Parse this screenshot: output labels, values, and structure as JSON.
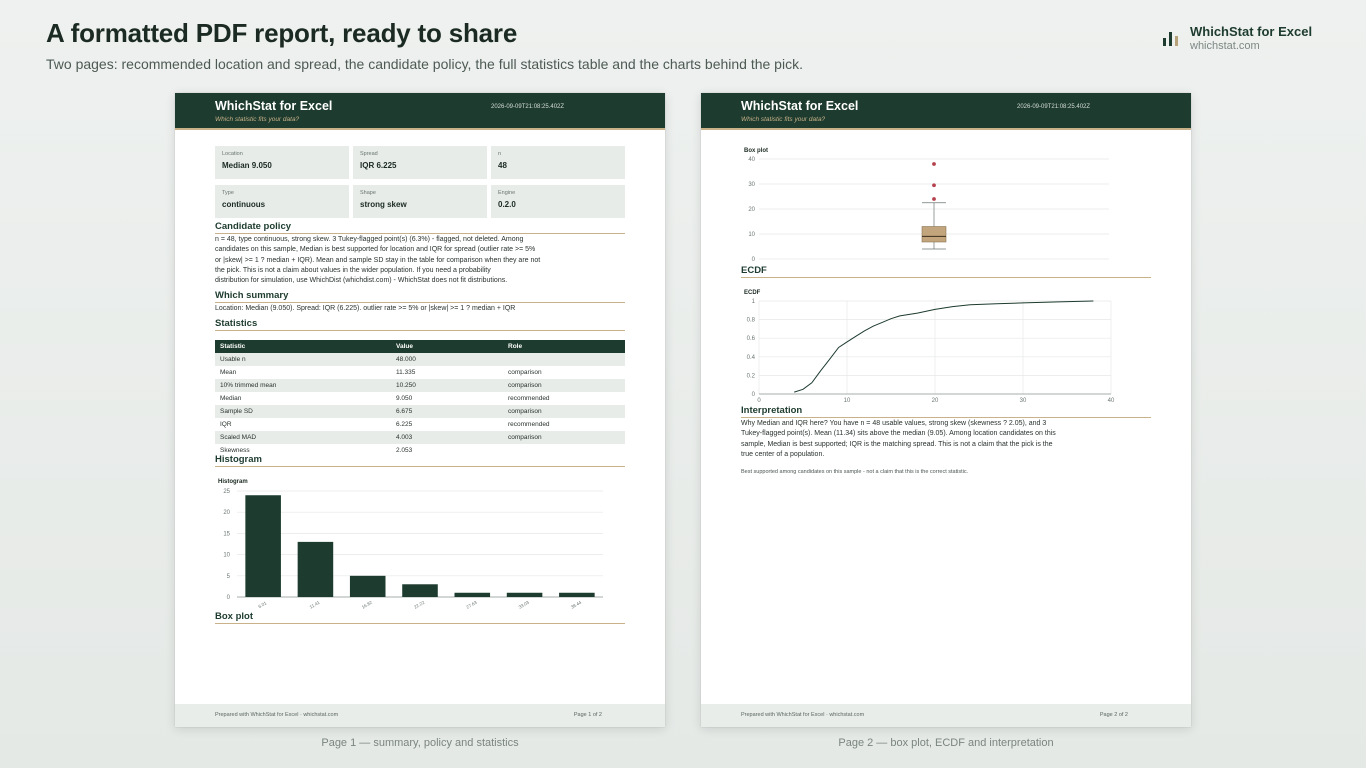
{
  "hero": {
    "title": "A formatted PDF report, ready to share",
    "subtitle": "Two pages: recommended location and spread, the candidate policy, the full statistics table and the charts behind the pick."
  },
  "brand": {
    "name": "WhichStat for Excel",
    "url": "whichstat.com",
    "icon": "bar-chart-icon"
  },
  "report": {
    "title": "WhichStat for Excel",
    "tagline": "Which statistic fits your data?",
    "timestamp": "2026-09-09T21:08:25.402Z",
    "footer_left": "Prepared with WhichStat for Excel · whichstat.com"
  },
  "page1": {
    "page_label": "Page 1 of 2",
    "caption": "Page 1 — summary, policy and statistics",
    "cards": [
      {
        "key": "Location",
        "value": "Median  9.050"
      },
      {
        "key": "Spread",
        "value": "IQR  6.225"
      },
      {
        "key": "n",
        "value": "48"
      },
      {
        "key": "Type",
        "value": "continuous"
      },
      {
        "key": "Shape",
        "value": "strong skew"
      },
      {
        "key": "Engine",
        "value": "0.2.0"
      }
    ],
    "candidate_policy": {
      "heading": "Candidate policy",
      "lines": [
        "n = 48, type continuous, strong skew. 3 Tukey-flagged point(s) (6.3%) - flagged, not deleted. Among",
        "candidates on this sample, Median is best supported for location and IQR for spread (outlier rate >= 5%",
        "or |skew| >= 1 ? median + IQR). Mean and sample SD stay in the table for comparison when they are not",
        "the pick. This is not a claim about values in the wider population. If you need a probability",
        "distribution for simulation, use WhichDist (whichdist.com) - WhichStat does not fit distributions."
      ]
    },
    "which_summary": {
      "heading": "Which summary",
      "text": "Location: Median (9.050). Spread: IQR (6.225). outlier rate >= 5% or |skew| >= 1 ? median + IQR"
    },
    "statistics": {
      "heading": "Statistics",
      "columns": [
        "Statistic",
        "Value",
        "Role"
      ],
      "rows": [
        [
          "Usable n",
          "48.000",
          ""
        ],
        [
          "Mean",
          "11.335",
          "comparison"
        ],
        [
          "10% trimmed mean",
          "10.250",
          "comparison"
        ],
        [
          "Median",
          "9.050",
          "recommended"
        ],
        [
          "Sample SD",
          "6.675",
          "comparison"
        ],
        [
          "IQR",
          "6.225",
          "recommended"
        ],
        [
          "Scaled MAD",
          "4.003",
          "comparison"
        ],
        [
          "Skewness",
          "2.053",
          ""
        ]
      ]
    },
    "histogram_heading": "Histogram",
    "boxplot_heading": "Box plot"
  },
  "page2": {
    "page_label": "Page 2 of 2",
    "caption": "Page 2 — box plot, ECDF and interpretation",
    "ecdf_heading": "ECDF",
    "interpretation": {
      "heading": "Interpretation",
      "lines": [
        "Why Median and IQR here? You have n = 48 usable values, strong skew (skewness ? 2.05), and 3",
        "Tukey-flagged point(s). Mean (11.34) sits above the median (9.05). Among location candidates on this",
        "sample, Median is best supported; IQR is the matching spread. This is not a claim that the pick is the",
        "true center of a population."
      ],
      "note": "Best supported among candidates on this sample - not a claim that this is the correct statistic."
    }
  },
  "chart_data": [
    {
      "type": "bar",
      "title": "Histogram",
      "categories": [
        "6.01",
        "11.41",
        "16.82",
        "22.22",
        "27.63",
        "33.03",
        "38.44"
      ],
      "values": [
        24,
        13,
        5,
        3,
        1,
        1,
        1
      ],
      "ylim": [
        0,
        25
      ],
      "yticks": [
        0,
        5,
        10,
        15,
        20,
        25
      ],
      "grid": true,
      "color": "#1d3b2e"
    },
    {
      "type": "boxplot",
      "title": "Box plot",
      "q1": 6.8,
      "median": 9.05,
      "q3": 13.0,
      "whisker_low": 4.0,
      "whisker_high": 22.5,
      "outliers": [
        24.0,
        29.5,
        38.0
      ],
      "ylim": [
        0,
        40
      ],
      "yticks": [
        0,
        10,
        20,
        30,
        40
      ],
      "box_color": "#c2a57c",
      "outlier_color": "#b5434f",
      "grid": true
    },
    {
      "type": "line",
      "title": "ECDF",
      "x": [
        4.0,
        5.0,
        6.0,
        7.0,
        8.0,
        9.05,
        10.0,
        11.0,
        12.0,
        13.0,
        14.0,
        15.0,
        16.0,
        18.0,
        20.0,
        22.0,
        24.0,
        27.0,
        30.0,
        34.0,
        38.0
      ],
      "y": [
        0.02,
        0.05,
        0.12,
        0.25,
        0.37,
        0.5,
        0.56,
        0.62,
        0.68,
        0.73,
        0.77,
        0.81,
        0.84,
        0.87,
        0.91,
        0.94,
        0.96,
        0.97,
        0.98,
        0.99,
        1.0
      ],
      "xlim": [
        0,
        40
      ],
      "xticks": [
        0,
        10,
        20,
        30,
        40
      ],
      "ylim": [
        0,
        1
      ],
      "yticks": [
        0,
        0.2,
        0.4,
        0.6,
        0.8,
        1
      ],
      "grid": true,
      "color": "#1d3b2e"
    }
  ]
}
